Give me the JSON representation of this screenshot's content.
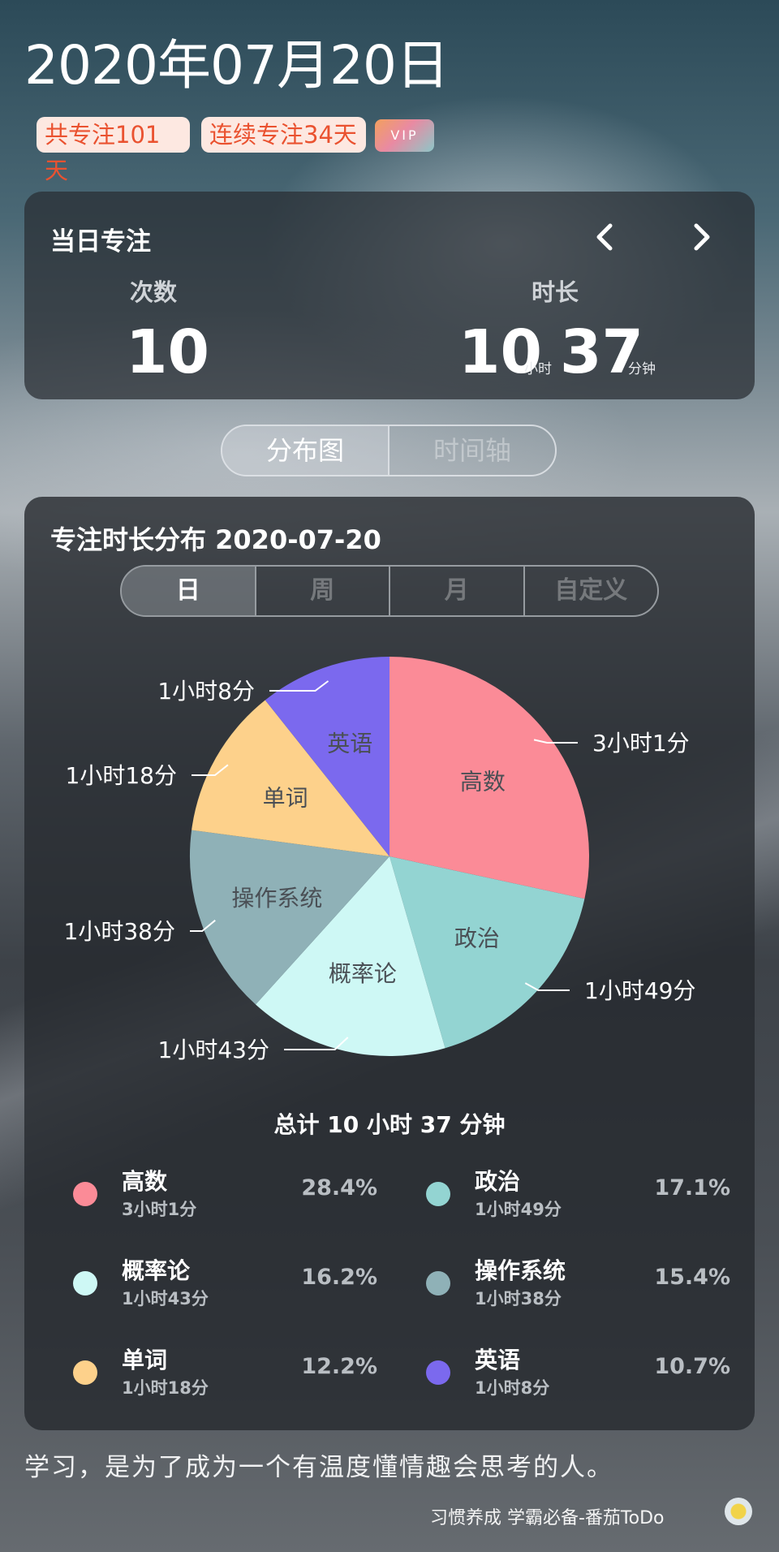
{
  "header": {
    "date": "2020年07月20日",
    "badge_total": "共专注101天",
    "badge_streak": "连续专注34天",
    "vip": "VIP"
  },
  "daily": {
    "title": "当日专注",
    "prev_icon": "chevron-left-icon",
    "next_icon": "chevron-right-icon",
    "count_label": "次数",
    "count_value": "10",
    "duration_label": "时长",
    "hours_value": "10",
    "hours_unit": "小时",
    "minutes_value": "37",
    "minutes_unit": "分钟"
  },
  "view_tabs": {
    "distribution": "分布图",
    "timeline": "时间轴",
    "selected": "分布图"
  },
  "distribution": {
    "title": "专注时长分布  2020-07-20",
    "period_tabs": [
      "日",
      "周",
      "月",
      "自定义"
    ],
    "selected_period": "日",
    "total": "总计 10 小时 37 分钟"
  },
  "chart_data": {
    "type": "pie",
    "slices": [
      {
        "name": "高数",
        "duration": "3小时1分",
        "percent": 28.4,
        "percent_label": "28.4%",
        "color": "#fb8b97"
      },
      {
        "name": "政治",
        "duration": "1小时49分",
        "percent": 17.1,
        "percent_label": "17.1%",
        "color": "#93d4d2"
      },
      {
        "name": "概率论",
        "duration": "1小时43分",
        "percent": 16.2,
        "percent_label": "16.2%",
        "color": "#cef8f5"
      },
      {
        "name": "操作系统",
        "duration": "1小时38分",
        "percent": 15.4,
        "percent_label": "15.4%",
        "color": "#8fb1b7"
      },
      {
        "name": "单词",
        "duration": "1小时18分",
        "percent": 12.2,
        "percent_label": "12.2%",
        "color": "#fdd18b"
      },
      {
        "name": "英语",
        "duration": "1小时8分",
        "percent": 10.7,
        "percent_label": "10.7%",
        "color": "#7b69ee"
      }
    ]
  },
  "footer": {
    "quote": "学习，是为了成为一个有温度懂情趣会思考的人。",
    "brand": "习惯养成 学霸必备-番茄ToDo",
    "icon": "app-logo-icon"
  }
}
